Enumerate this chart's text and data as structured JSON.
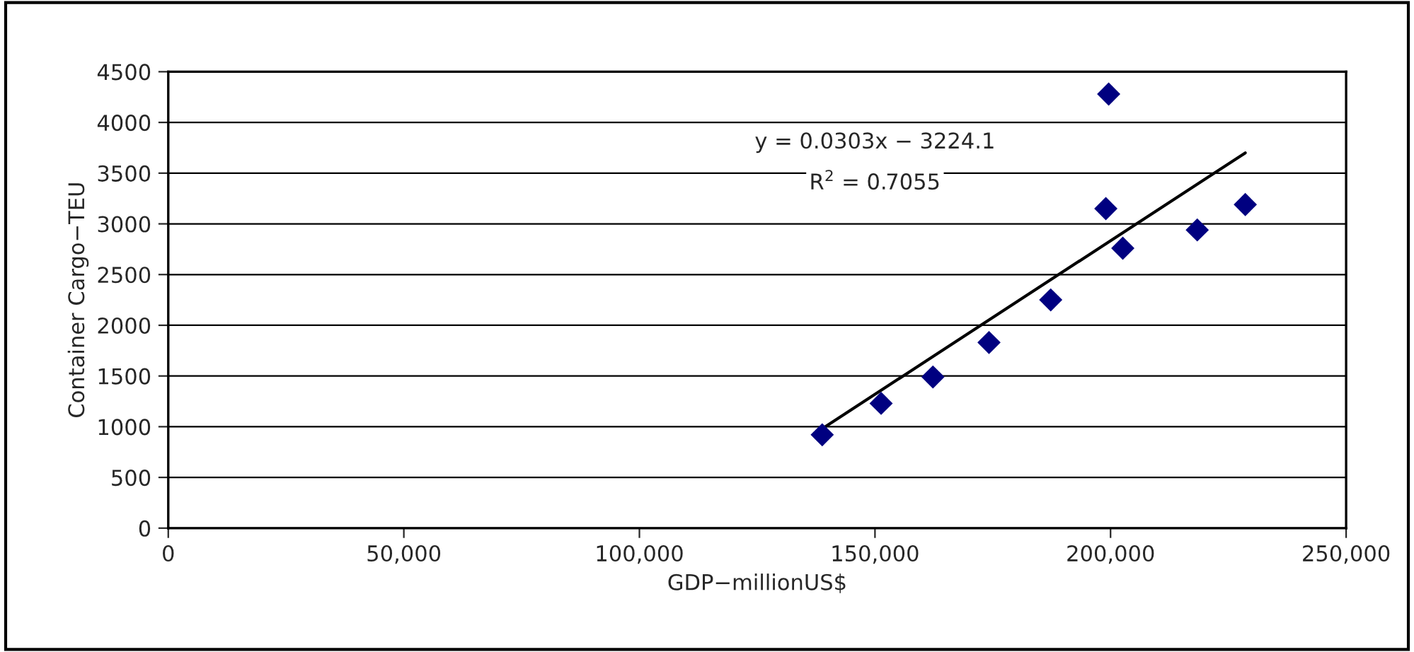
{
  "chart_data": {
    "type": "scatter",
    "xlabel": "GDP−millionUS$",
    "ylabel": "Container Cargo−TEU",
    "xlim": [
      0,
      250000
    ],
    "xticks": [
      {
        "value": 0,
        "label": "0"
      },
      {
        "value": 50000,
        "label": "50,000"
      },
      {
        "value": 100000,
        "label": "100,000"
      },
      {
        "value": 150000,
        "label": "150,000"
      },
      {
        "value": 200000,
        "label": "200,000"
      },
      {
        "value": 250000,
        "label": "250,000"
      }
    ],
    "ylim": [
      0,
      4500
    ],
    "yticks": [
      0,
      500,
      1000,
      1500,
      2000,
      2500,
      3000,
      3500,
      4000,
      4500
    ],
    "grid": "y",
    "series": [
      {
        "color": "#000080",
        "marker": "diamond",
        "x": [
          138800,
          151300,
          162300,
          174200,
          187300,
          199000,
          199600,
          202600,
          218400,
          228600
        ],
        "values": [
          920,
          1230,
          1490,
          1830,
          2250,
          3150,
          4280,
          2760,
          2940,
          3190
        ]
      },
      {
        "type": "line",
        "marker": "none",
        "color": "#000000",
        "x": [
          138800,
          228600
        ],
        "values": [
          980,
          3700
        ]
      }
    ],
    "annotations": [
      "y = 0.0303x − 3224.1",
      "R$^{2}$ = 0.7055"
    ]
  }
}
